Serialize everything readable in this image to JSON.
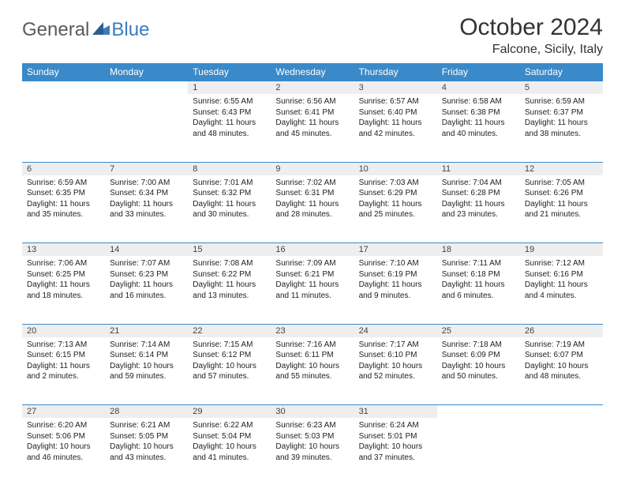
{
  "logo": {
    "general": "General",
    "blue": "Blue"
  },
  "title": "October 2024",
  "location": "Falcone, Sicily, Italy",
  "colors": {
    "header_bg": "#3a8ac9",
    "header_text": "#ffffff",
    "daynum_bg": "#eeeeee",
    "border": "#3a8ac9",
    "logo_gray": "#5a5a5a",
    "logo_blue": "#3a7bbf"
  },
  "dayHeaders": [
    "Sunday",
    "Monday",
    "Tuesday",
    "Wednesday",
    "Thursday",
    "Friday",
    "Saturday"
  ],
  "weeks": [
    [
      null,
      null,
      {
        "n": "1",
        "sr": "6:55 AM",
        "ss": "6:43 PM",
        "dl": "11 hours and 48 minutes."
      },
      {
        "n": "2",
        "sr": "6:56 AM",
        "ss": "6:41 PM",
        "dl": "11 hours and 45 minutes."
      },
      {
        "n": "3",
        "sr": "6:57 AM",
        "ss": "6:40 PM",
        "dl": "11 hours and 42 minutes."
      },
      {
        "n": "4",
        "sr": "6:58 AM",
        "ss": "6:38 PM",
        "dl": "11 hours and 40 minutes."
      },
      {
        "n": "5",
        "sr": "6:59 AM",
        "ss": "6:37 PM",
        "dl": "11 hours and 38 minutes."
      }
    ],
    [
      {
        "n": "6",
        "sr": "6:59 AM",
        "ss": "6:35 PM",
        "dl": "11 hours and 35 minutes."
      },
      {
        "n": "7",
        "sr": "7:00 AM",
        "ss": "6:34 PM",
        "dl": "11 hours and 33 minutes."
      },
      {
        "n": "8",
        "sr": "7:01 AM",
        "ss": "6:32 PM",
        "dl": "11 hours and 30 minutes."
      },
      {
        "n": "9",
        "sr": "7:02 AM",
        "ss": "6:31 PM",
        "dl": "11 hours and 28 minutes."
      },
      {
        "n": "10",
        "sr": "7:03 AM",
        "ss": "6:29 PM",
        "dl": "11 hours and 25 minutes."
      },
      {
        "n": "11",
        "sr": "7:04 AM",
        "ss": "6:28 PM",
        "dl": "11 hours and 23 minutes."
      },
      {
        "n": "12",
        "sr": "7:05 AM",
        "ss": "6:26 PM",
        "dl": "11 hours and 21 minutes."
      }
    ],
    [
      {
        "n": "13",
        "sr": "7:06 AM",
        "ss": "6:25 PM",
        "dl": "11 hours and 18 minutes."
      },
      {
        "n": "14",
        "sr": "7:07 AM",
        "ss": "6:23 PM",
        "dl": "11 hours and 16 minutes."
      },
      {
        "n": "15",
        "sr": "7:08 AM",
        "ss": "6:22 PM",
        "dl": "11 hours and 13 minutes."
      },
      {
        "n": "16",
        "sr": "7:09 AM",
        "ss": "6:21 PM",
        "dl": "11 hours and 11 minutes."
      },
      {
        "n": "17",
        "sr": "7:10 AM",
        "ss": "6:19 PM",
        "dl": "11 hours and 9 minutes."
      },
      {
        "n": "18",
        "sr": "7:11 AM",
        "ss": "6:18 PM",
        "dl": "11 hours and 6 minutes."
      },
      {
        "n": "19",
        "sr": "7:12 AM",
        "ss": "6:16 PM",
        "dl": "11 hours and 4 minutes."
      }
    ],
    [
      {
        "n": "20",
        "sr": "7:13 AM",
        "ss": "6:15 PM",
        "dl": "11 hours and 2 minutes."
      },
      {
        "n": "21",
        "sr": "7:14 AM",
        "ss": "6:14 PM",
        "dl": "10 hours and 59 minutes."
      },
      {
        "n": "22",
        "sr": "7:15 AM",
        "ss": "6:12 PM",
        "dl": "10 hours and 57 minutes."
      },
      {
        "n": "23",
        "sr": "7:16 AM",
        "ss": "6:11 PM",
        "dl": "10 hours and 55 minutes."
      },
      {
        "n": "24",
        "sr": "7:17 AM",
        "ss": "6:10 PM",
        "dl": "10 hours and 52 minutes."
      },
      {
        "n": "25",
        "sr": "7:18 AM",
        "ss": "6:09 PM",
        "dl": "10 hours and 50 minutes."
      },
      {
        "n": "26",
        "sr": "7:19 AM",
        "ss": "6:07 PM",
        "dl": "10 hours and 48 minutes."
      }
    ],
    [
      {
        "n": "27",
        "sr": "6:20 AM",
        "ss": "5:06 PM",
        "dl": "10 hours and 46 minutes."
      },
      {
        "n": "28",
        "sr": "6:21 AM",
        "ss": "5:05 PM",
        "dl": "10 hours and 43 minutes."
      },
      {
        "n": "29",
        "sr": "6:22 AM",
        "ss": "5:04 PM",
        "dl": "10 hours and 41 minutes."
      },
      {
        "n": "30",
        "sr": "6:23 AM",
        "ss": "5:03 PM",
        "dl": "10 hours and 39 minutes."
      },
      {
        "n": "31",
        "sr": "6:24 AM",
        "ss": "5:01 PM",
        "dl": "10 hours and 37 minutes."
      },
      null,
      null
    ]
  ],
  "labels": {
    "sunrise": "Sunrise:",
    "sunset": "Sunset:",
    "daylight": "Daylight:"
  }
}
